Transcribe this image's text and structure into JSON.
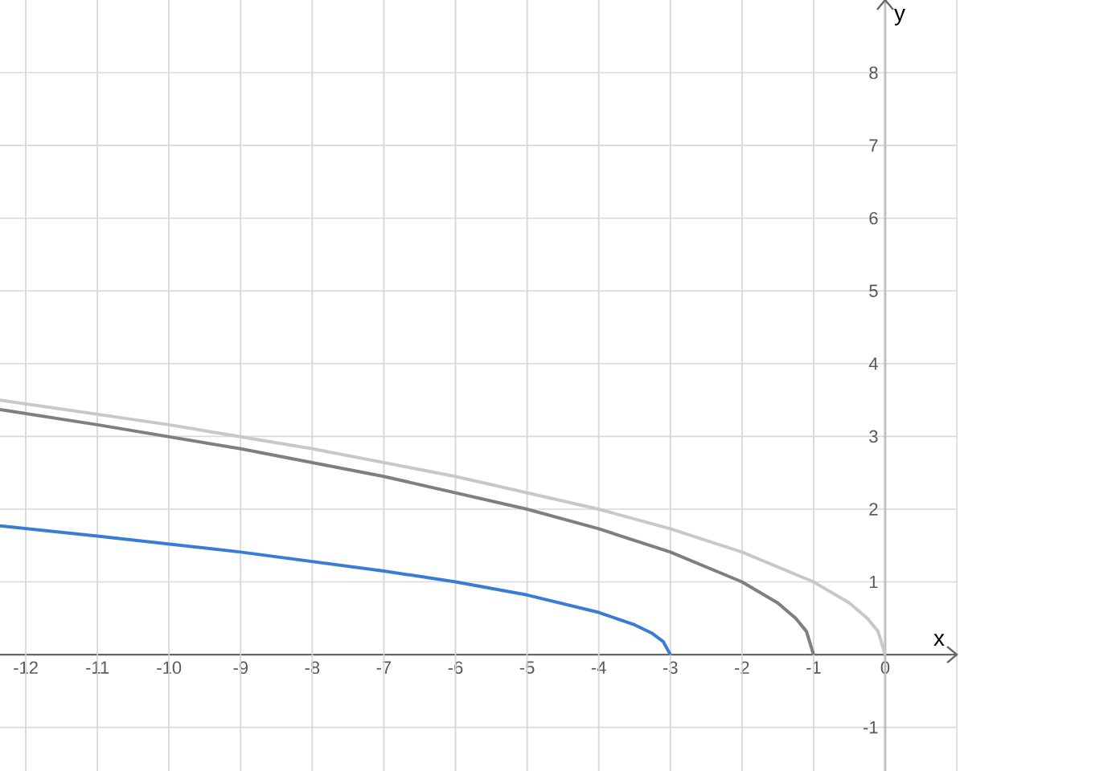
{
  "chart_data": {
    "type": "line",
    "xlabel": "x",
    "ylabel": "y",
    "xlim": [
      -12.36,
      1
    ],
    "ylim": [
      -1.6,
      9
    ],
    "xticks": [
      -12,
      -11,
      -10,
      -9,
      -8,
      -7,
      -6,
      -5,
      -4,
      -3,
      -2,
      -1,
      0
    ],
    "yticks": [
      -1,
      1,
      2,
      3,
      4,
      5,
      6,
      7,
      8
    ],
    "grid": true,
    "series": [
      {
        "color": "#c8c8c8",
        "x": [
          0,
          -0.1,
          -0.25,
          -0.5,
          -1,
          -2,
          -3,
          -4,
          -6,
          -8,
          -10,
          -12.36
        ],
        "values": [
          0,
          0.32,
          0.5,
          0.71,
          1,
          1.41,
          1.73,
          2,
          2.45,
          2.83,
          3.16,
          3.5
        ]
      },
      {
        "color": "#7f7f7f",
        "x": [
          -1,
          -1.1,
          -1.25,
          -1.5,
          -2,
          -3,
          -4,
          -5,
          -7,
          -9,
          -11,
          -12.36
        ],
        "values": [
          0,
          0.32,
          0.5,
          0.71,
          1,
          1.41,
          1.73,
          2,
          2.45,
          2.83,
          3.16,
          3.37
        ]
      },
      {
        "color": "#3a7bd5",
        "x": [
          -3,
          -3.1,
          -3.25,
          -3.5,
          -4,
          -5,
          -6,
          -7,
          -9,
          -11,
          -12.36
        ],
        "values": [
          0,
          0.18,
          0.29,
          0.41,
          0.58,
          0.82,
          1,
          1.15,
          1.41,
          1.63,
          1.77
        ]
      }
    ]
  }
}
